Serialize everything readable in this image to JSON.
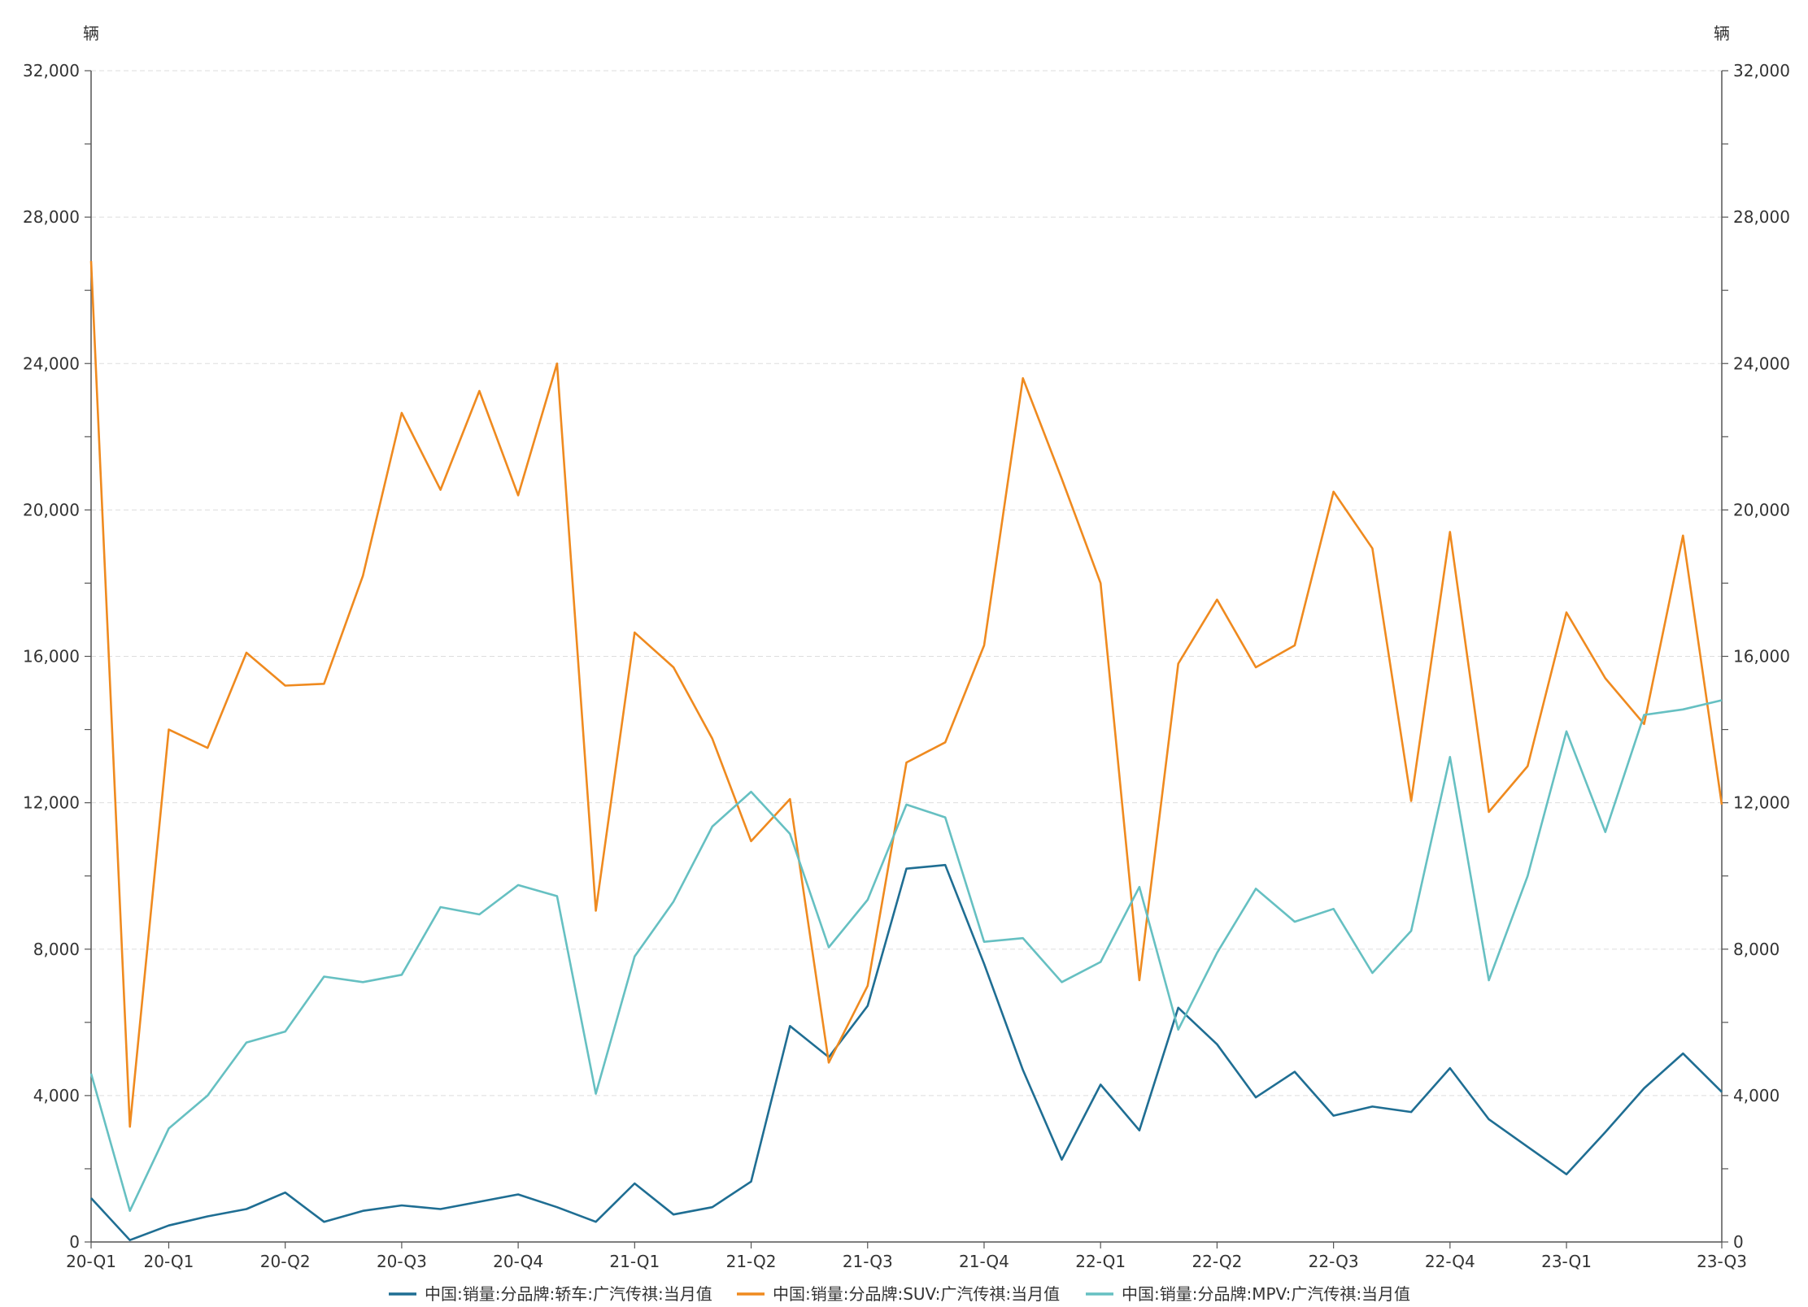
{
  "colors": {
    "sedan": "#1f6e93",
    "suv": "#ef8a1f",
    "mpv": "#66c0c2",
    "axis": "#555555",
    "grid": "#dddddd"
  },
  "chart_data": {
    "type": "line",
    "y_unit_left": "辆",
    "y_unit_right": "辆",
    "ylim": [
      0,
      32000
    ],
    "y_ticks": [
      "0",
      "4,000",
      "8,000",
      "12,000",
      "16,000",
      "20,000",
      "24,000",
      "28,000",
      "32,000"
    ],
    "y_tick_values": [
      0,
      4000,
      8000,
      12000,
      16000,
      20000,
      24000,
      28000,
      32000
    ],
    "grid": true,
    "legend_position": "bottom",
    "x_tick_labels": [
      "20-Q1",
      "20-Q1",
      "20-Q2",
      "20-Q3",
      "20-Q4",
      "21-Q1",
      "21-Q2",
      "21-Q3",
      "21-Q4",
      "22-Q1",
      "22-Q2",
      "22-Q3",
      "22-Q4",
      "23-Q1",
      "23-Q3"
    ],
    "x_tick_index": [
      0,
      2,
      5,
      8,
      11,
      14,
      17,
      20,
      23,
      26,
      29,
      32,
      35,
      38,
      42
    ],
    "num_points": 43,
    "series": [
      {
        "name": "中国:销量:分品牌:轿车:广汽传祺:当月值",
        "color_key": "sedan",
        "values": [
          1200,
          50,
          450,
          700,
          900,
          1350,
          550,
          850,
          1000,
          900,
          1100,
          1300,
          950,
          550,
          1600,
          750,
          950,
          1650,
          5900,
          5050,
          6450,
          10200,
          10300,
          7600,
          4700,
          2250,
          4300,
          3050,
          6400,
          5400,
          3950,
          4650,
          3450,
          3700,
          3550,
          4750,
          3350,
          2600,
          1850,
          3000,
          4200,
          5150,
          4100
        ]
      },
      {
        "name": "中国:销量:分品牌:SUV:广汽传祺:当月值",
        "color_key": "suv",
        "values": [
          26800,
          3150,
          14000,
          13500,
          16100,
          15200,
          15250,
          18200,
          22650,
          20550,
          23250,
          20400,
          24000,
          9050,
          16650,
          15700,
          13750,
          10950,
          12100,
          4900,
          7000,
          13100,
          13650,
          16300,
          23600,
          20850,
          18000,
          7150,
          15800,
          17550,
          15700,
          16300,
          20500,
          18950,
          12050,
          19400,
          11750,
          13000,
          17200,
          15400,
          14150,
          19300,
          11950
        ]
      },
      {
        "name": "中国:销量:分品牌:MPV:广汽传祺:当月值",
        "color_key": "mpv",
        "values": [
          4600,
          850,
          3100,
          4000,
          5450,
          5750,
          7250,
          7100,
          7300,
          9150,
          8950,
          9750,
          9450,
          4050,
          7800,
          9300,
          11350,
          12300,
          11150,
          8050,
          9350,
          11950,
          11600,
          8200,
          8300,
          7100,
          7650,
          9700,
          5800,
          7900,
          9650,
          8750,
          9100,
          7350,
          8500,
          13250,
          7150,
          10000,
          13950,
          11200,
          14400,
          14550,
          14800
        ]
      }
    ]
  }
}
